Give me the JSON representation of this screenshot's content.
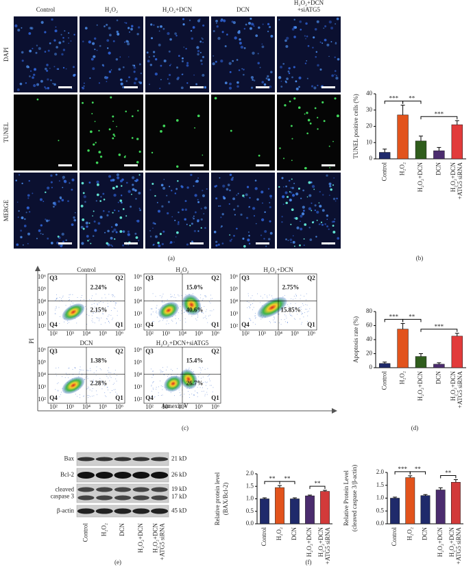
{
  "panel_labels": [
    "(a)",
    "(b)",
    "(c)",
    "(d)",
    "(e)",
    "(f)"
  ],
  "microscopy": {
    "columns": [
      [
        "Control"
      ],
      [
        "H₂O₂"
      ],
      [
        "H₂O₂+DCN"
      ],
      [
        "DCN"
      ],
      [
        "H₂O₂+DCN",
        "+siATG5"
      ]
    ],
    "rows": [
      "DAPI",
      "TUNEL",
      "MERGE"
    ]
  },
  "flow_cytometry": {
    "xlabel": "Annexin V",
    "ylabel": "PI",
    "axis_ticks": [
      "10²",
      "10³",
      "10⁴",
      "10⁵",
      "10⁶"
    ],
    "quadrants": [
      "Q1",
      "Q2",
      "Q3",
      "Q4"
    ],
    "plots": [
      {
        "title": "Control",
        "q2": "2.24%",
        "q1": "2.15%"
      },
      {
        "title": "H₂O₂",
        "q2": "15.0%",
        "q1": "40.6%"
      },
      {
        "title": "H₂O₂+DCN",
        "q2": "2.75%",
        "q1": "15.85%"
      },
      {
        "title": "DCN",
        "q2": "1.38%",
        "q1": "2.28%"
      },
      {
        "title": "H₂O₂+DCN+siATG5",
        "q2": "15.4%",
        "q1": "26.7%"
      }
    ]
  },
  "western_blot": {
    "lanes": [
      [
        "Control"
      ],
      [
        "H₂O₂"
      ],
      [
        "DCN"
      ],
      [
        "H₂O₂+DCN"
      ],
      [
        "H₂O₂+DCN",
        "+ATG5 siRNA"
      ]
    ],
    "bands": [
      {
        "name": [
          "Bax"
        ],
        "sizes": [
          "21 kD"
        ]
      },
      {
        "name": [
          "Bcl-2"
        ],
        "sizes": [
          "26 kD"
        ]
      },
      {
        "name": [
          "cleaved",
          "caspase 3"
        ],
        "sizes": [
          "19 kD",
          "17 kD"
        ]
      },
      {
        "name": [
          "β-actin"
        ],
        "sizes": [
          "45 kD"
        ]
      }
    ]
  },
  "chart_data": [
    {
      "type": "bar",
      "ylabel": [
        "TUNEL positive cells (%)"
      ],
      "categories": [
        [
          "Control"
        ],
        [
          "H₂O₂"
        ],
        [
          "H₂O₂+DCN"
        ],
        [
          "DCN"
        ],
        [
          "H₂O₂+DCN",
          "+ATG5 siRNA"
        ]
      ],
      "values": [
        4,
        27,
        11,
        5,
        21
      ],
      "errors": [
        2,
        6,
        3,
        2,
        2.5
      ],
      "colors": [
        "#1f2a6b",
        "#e2531c",
        "#2f5d1c",
        "#4b2c6e",
        "#e23b3b"
      ],
      "ylim": [
        0,
        40
      ],
      "yticks": [
        0,
        10,
        20,
        30,
        40
      ],
      "significance": [
        {
          "between": [
            0,
            1
          ],
          "label": "***"
        },
        {
          "between": [
            1,
            2
          ],
          "label": "**"
        },
        {
          "between": [
            2,
            4
          ],
          "label": "***"
        }
      ]
    },
    {
      "type": "bar",
      "ylabel": [
        "Apoptosis rate (%)"
      ],
      "categories": [
        [
          "Control"
        ],
        [
          "H₂O₂"
        ],
        [
          "H₂O₂+DCN"
        ],
        [
          "DCN"
        ],
        [
          "H₂O₂+DCN",
          "+ATG5 siRNA"
        ]
      ],
      "values": [
        6,
        55,
        16,
        5,
        45
      ],
      "errors": [
        2,
        8,
        4,
        2,
        4
      ],
      "colors": [
        "#1f2a6b",
        "#e2531c",
        "#2f5d1c",
        "#4b2c6e",
        "#e23b3b"
      ],
      "ylim": [
        0,
        80
      ],
      "yticks": [
        0,
        20,
        40,
        60,
        80
      ],
      "significance": [
        {
          "between": [
            0,
            1
          ],
          "label": "***"
        },
        {
          "between": [
            1,
            2
          ],
          "label": "**"
        },
        {
          "between": [
            2,
            4
          ],
          "label": "***"
        }
      ]
    },
    {
      "type": "bar",
      "ylabel": [
        "Relative protein level",
        "(BAX/Bcl-2)"
      ],
      "categories": [
        [
          "Control"
        ],
        [
          "H₂O₂"
        ],
        [
          "DCN"
        ],
        [
          "H₂O₂+DCN"
        ],
        [
          "H₂O₂+DCN",
          "+ATG5 siRNA"
        ]
      ],
      "values": [
        1.0,
        1.45,
        1.0,
        1.12,
        1.3
      ],
      "errors": [
        0.04,
        0.08,
        0.04,
        0.03,
        0.04
      ],
      "colors": [
        "#1f2a6b",
        "#e2531c",
        "#1f2a6b",
        "#4b2c6e",
        "#d23a3a"
      ],
      "ylim": [
        0,
        2
      ],
      "yticks": [
        {
          "value": 0,
          "label": "0.0"
        },
        {
          "value": 0.5,
          "label": "0.5"
        },
        {
          "value": 1,
          "label": "1.0"
        },
        {
          "value": 1.5,
          "label": "1.5"
        },
        {
          "value": 2,
          "label": "2.0"
        }
      ],
      "significance": [
        {
          "between": [
            0,
            1
          ],
          "label": "**"
        },
        {
          "between": [
            1,
            2
          ],
          "label": "**"
        },
        {
          "between": [
            3,
            4
          ],
          "label": "**"
        }
      ]
    },
    {
      "type": "bar",
      "ylabel": [
        "Relative Protein Level",
        "(cleaved caspase 3/β-actin)"
      ],
      "categories": [
        [
          "Control"
        ],
        [
          "H₂O₂"
        ],
        [
          "DCN"
        ],
        [
          "H₂O₂+DCN"
        ],
        [
          "H₂O₂+DCN",
          "+ATG5 siRNA"
        ]
      ],
      "values": [
        1.0,
        1.8,
        1.1,
        1.32,
        1.62
      ],
      "errors": [
        0.04,
        0.07,
        0.04,
        0.08,
        0.1
      ],
      "colors": [
        "#1f2a6b",
        "#e2531c",
        "#1f2a6b",
        "#4b2c6e",
        "#d23a3a"
      ],
      "ylim": [
        0,
        2
      ],
      "yticks": [
        {
          "value": 0,
          "label": "0.0"
        },
        {
          "value": 0.5,
          "label": "0.5"
        },
        {
          "value": 1,
          "label": "1.0"
        },
        {
          "value": 1.5,
          "label": "1.5"
        },
        {
          "value": 2,
          "label": "2.0"
        }
      ],
      "significance": [
        {
          "between": [
            0,
            1
          ],
          "label": "***"
        },
        {
          "between": [
            1,
            2
          ],
          "label": "**"
        },
        {
          "between": [
            3,
            4
          ],
          "label": "**"
        }
      ]
    }
  ]
}
